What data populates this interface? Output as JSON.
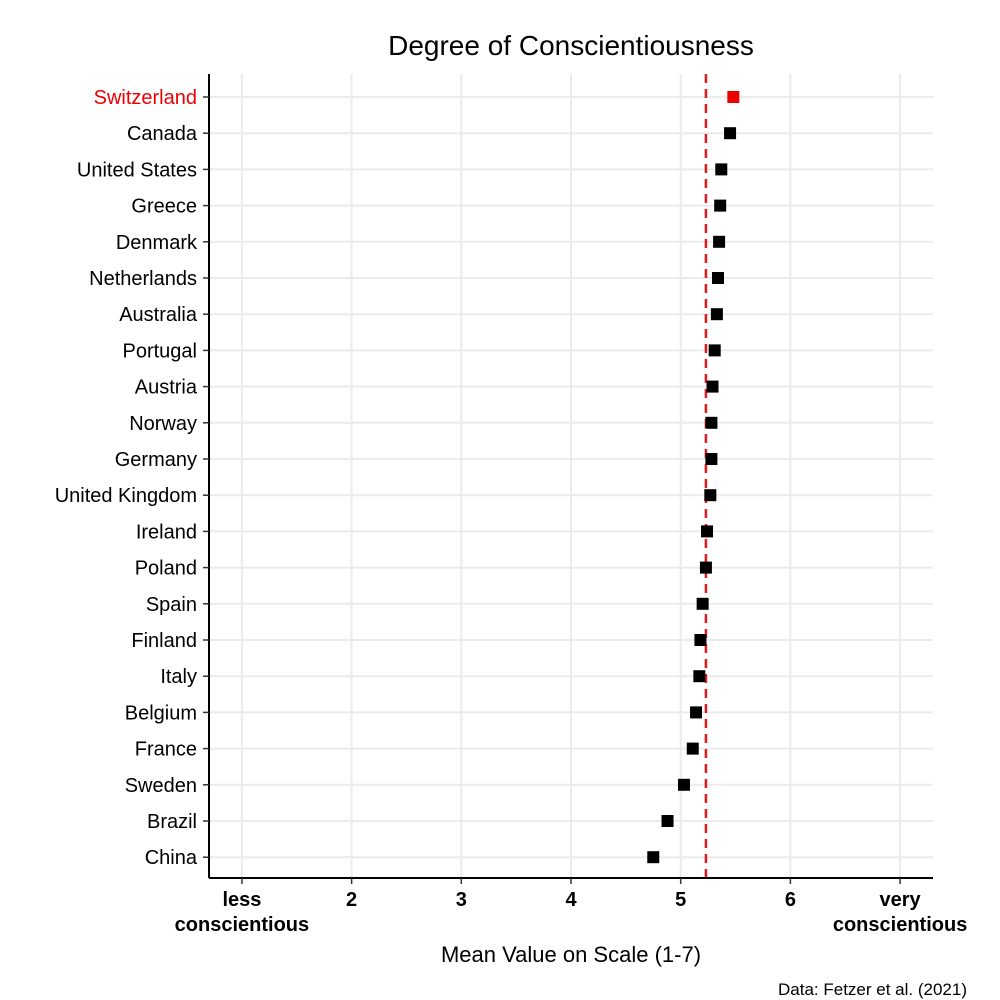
{
  "chart_data": {
    "type": "scatter",
    "title": "Degree of Conscientiousness",
    "xlabel": "Mean Value on Scale (1-7)",
    "caption": "Data: Fetzer et al. (2021)",
    "xlim": [
      0.7,
      7.3
    ],
    "x_ticks": [
      {
        "value": 1,
        "lines": [
          "less",
          "conscientious"
        ]
      },
      {
        "value": 2,
        "lines": [
          "2"
        ]
      },
      {
        "value": 3,
        "lines": [
          "3"
        ]
      },
      {
        "value": 4,
        "lines": [
          "4"
        ]
      },
      {
        "value": 5,
        "lines": [
          "5"
        ]
      },
      {
        "value": 6,
        "lines": [
          "6"
        ]
      },
      {
        "value": 7,
        "lines": [
          "very",
          "conscientious"
        ]
      }
    ],
    "reference_line": {
      "value": 5.23,
      "style": "dashed",
      "color": "#e41a1c"
    },
    "highlight": "Switzerland",
    "highlight_color": "#ee0000",
    "point_color": "#000000",
    "points": [
      {
        "country": "Switzerland",
        "value": 5.48
      },
      {
        "country": "Canada",
        "value": 5.45
      },
      {
        "country": "United States",
        "value": 5.37
      },
      {
        "country": "Greece",
        "value": 5.36
      },
      {
        "country": "Denmark",
        "value": 5.35
      },
      {
        "country": "Netherlands",
        "value": 5.34
      },
      {
        "country": "Australia",
        "value": 5.33
      },
      {
        "country": "Portugal",
        "value": 5.31
      },
      {
        "country": "Austria",
        "value": 5.29
      },
      {
        "country": "Norway",
        "value": 5.28
      },
      {
        "country": "Germany",
        "value": 5.28
      },
      {
        "country": "United Kingdom",
        "value": 5.27
      },
      {
        "country": "Ireland",
        "value": 5.24
      },
      {
        "country": "Poland",
        "value": 5.23
      },
      {
        "country": "Spain",
        "value": 5.2
      },
      {
        "country": "Finland",
        "value": 5.18
      },
      {
        "country": "Italy",
        "value": 5.17
      },
      {
        "country": "Belgium",
        "value": 5.14
      },
      {
        "country": "France",
        "value": 5.11
      },
      {
        "country": "Sweden",
        "value": 5.03
      },
      {
        "country": "Brazil",
        "value": 4.88
      },
      {
        "country": "China",
        "value": 4.75
      }
    ]
  }
}
